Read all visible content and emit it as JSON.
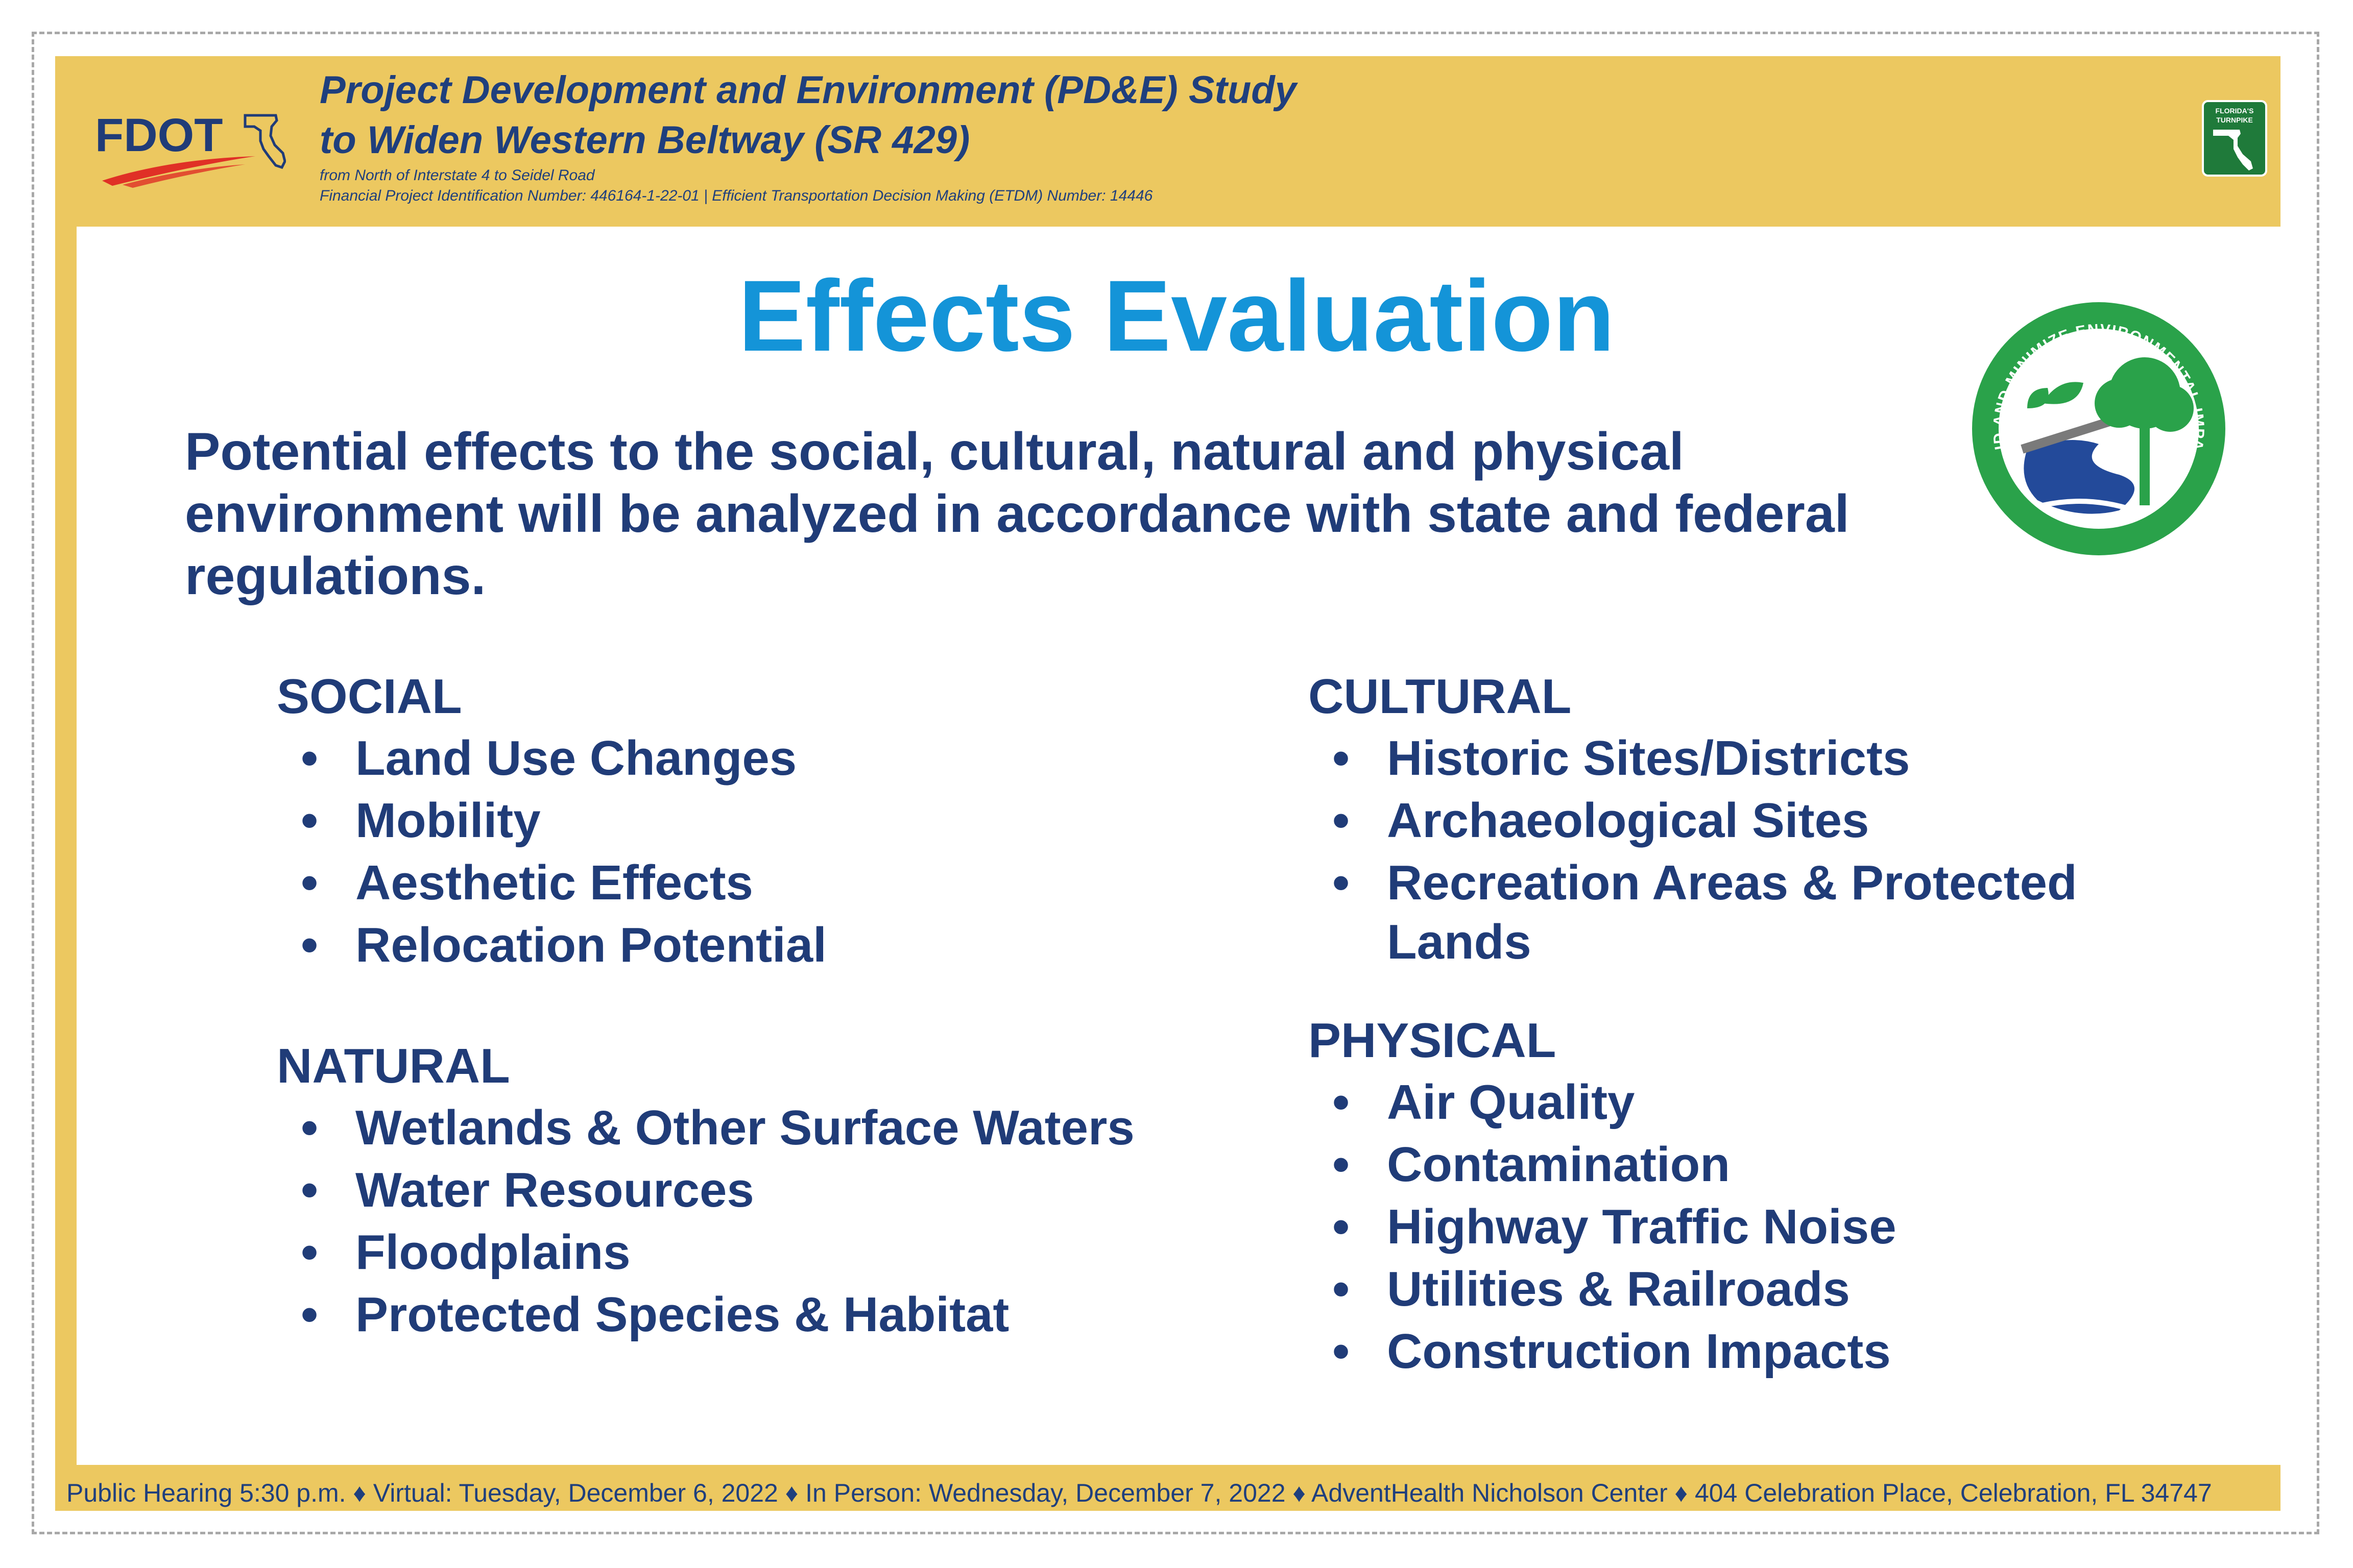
{
  "header": {
    "title_line1": "Project Development and Environment (PD&E) Study",
    "title_line2": "to Widen Western Beltway (SR 429)",
    "sub_line1": "from North of Interstate 4 to Seidel Road",
    "sub_line2": "Financial Project Identification Number: 446164-1-22-01 | Efficient Transportation Decision Making (ETDM) Number: 14446",
    "fdot_logo_text": "FDOT",
    "turnpike_logo_text": [
      "FLORIDA'S",
      "TURNPIKE"
    ]
  },
  "page_title": "Effects Evaluation",
  "seal": {
    "text": "AVOID AND MINIMIZE ENVIRONMENTAL IMPACTS"
  },
  "intro": "Potential effects to the social, cultural, natural and physical environment will be analyzed in accordance with state and federal regulations.",
  "sections": {
    "social": {
      "heading": "SOCIAL",
      "items": [
        "Land Use Changes",
        "Mobility",
        "Aesthetic Effects",
        "Relocation Potential"
      ]
    },
    "natural": {
      "heading": "NATURAL",
      "items": [
        "Wetlands & Other Surface Waters",
        "Water Resources",
        "Floodplains",
        "Protected Species & Habitat"
      ]
    },
    "cultural": {
      "heading": "CULTURAL",
      "items": [
        "Historic Sites/Districts",
        "Archaeological Sites",
        "Recreation Areas & Protected Lands"
      ]
    },
    "physical": {
      "heading": "PHYSICAL",
      "items": [
        "Air Quality",
        "Contamination",
        "Highway Traffic Noise",
        "Utilities & Railroads",
        "Construction Impacts"
      ]
    }
  },
  "bullet_char": "•",
  "footer": "Public Hearing 5:30 p.m. ♦ Virtual: Tuesday, December 6, 2022 ♦ In Person: Wednesday, December 7, 2022 ♦  AdventHealth Nicholson Center ♦ 404 Celebration Place, Celebration, FL 34747",
  "colors": {
    "board": "#ecc860",
    "title_blue": "#1494d8",
    "text_navy": "#203c78",
    "seal_green": "#2aa24a",
    "water_blue": "#234a9a"
  }
}
